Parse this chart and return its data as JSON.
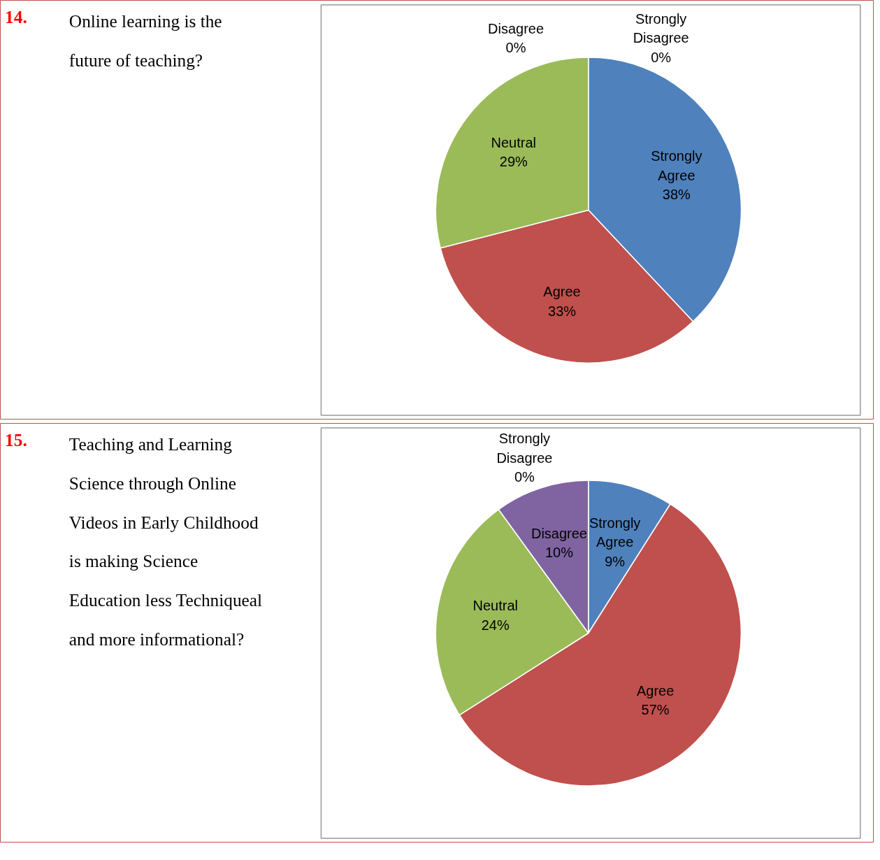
{
  "chart_data": [
    {
      "type": "pie",
      "title": "Online learning is the future of teaching?",
      "annotations": [
        "14."
      ],
      "categories": [
        "Strongly Agree",
        "Agree",
        "Neutral",
        "Disagree",
        "Strongly Disagree"
      ],
      "values": [
        38,
        33,
        29,
        0,
        0
      ],
      "value_labels": [
        "38%",
        "33%",
        "29%",
        "0%",
        "0%"
      ],
      "colors": [
        "#4f81bd",
        "#c0504d",
        "#9bbb59",
        "#8064a2",
        "#4bacc6"
      ]
    },
    {
      "type": "pie",
      "title": "Teaching and Learning Science through Online Videos in Early Childhood is making Science Education less Techniqueal and more informational?",
      "annotations": [
        "15."
      ],
      "categories": [
        "Strongly Agree",
        "Agree",
        "Neutral",
        "Disagree",
        "Strongly Disagree"
      ],
      "values": [
        9,
        57,
        24,
        10,
        0
      ],
      "value_labels": [
        "9%",
        "57%",
        "24%",
        "10%",
        "0%"
      ],
      "colors": [
        "#4f81bd",
        "#c0504d",
        "#9bbb59",
        "#8064a2",
        "#4bacc6"
      ]
    }
  ]
}
